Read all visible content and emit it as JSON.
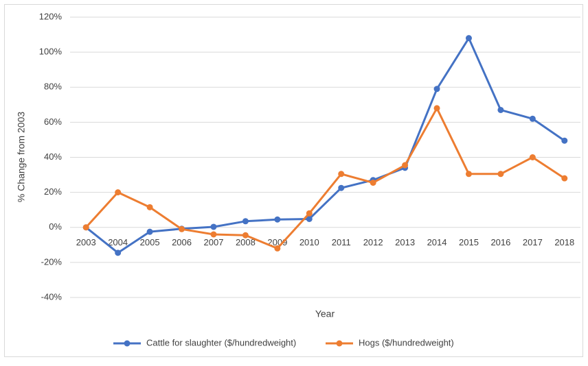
{
  "chart_data": {
    "type": "line",
    "y_label": "% Change from 2003",
    "x_label": "Year",
    "categories": [
      "2003",
      "2004",
      "2005",
      "2006",
      "2007",
      "2008",
      "2009",
      "2010",
      "2011",
      "2012",
      "2013",
      "2014",
      "2015",
      "2016",
      "2017",
      "2018"
    ],
    "series": [
      {
        "name": "Cattle for slaughter ($/hundredweight)",
        "color": "#4472c4",
        "values": [
          0,
          -14.5,
          -2.5,
          -0.8,
          0.3,
          3.5,
          4.5,
          4.8,
          22.5,
          27,
          34,
          79,
          108,
          67,
          62,
          49.5
        ]
      },
      {
        "name": "Hogs ($/hundredweight)",
        "color": "#ed7d31",
        "values": [
          0,
          20,
          11.5,
          -1,
          -4,
          -4.5,
          -12,
          8,
          30.5,
          25.5,
          35.5,
          68,
          30.5,
          30.5,
          40,
          28
        ]
      }
    ],
    "ylim": [
      -40,
      120
    ],
    "yticks": [
      {
        "value": -40,
        "label": "-40%"
      },
      {
        "value": -20,
        "label": "-20%"
      },
      {
        "value": 0,
        "label": "0%"
      },
      {
        "value": 20,
        "label": "20%"
      },
      {
        "value": 40,
        "label": "40%"
      },
      {
        "value": 60,
        "label": "60%"
      },
      {
        "value": 80,
        "label": "80%"
      },
      {
        "value": 100,
        "label": "100%"
      },
      {
        "value": 120,
        "label": "120%"
      }
    ],
    "grid": true,
    "legend": "bottom"
  }
}
